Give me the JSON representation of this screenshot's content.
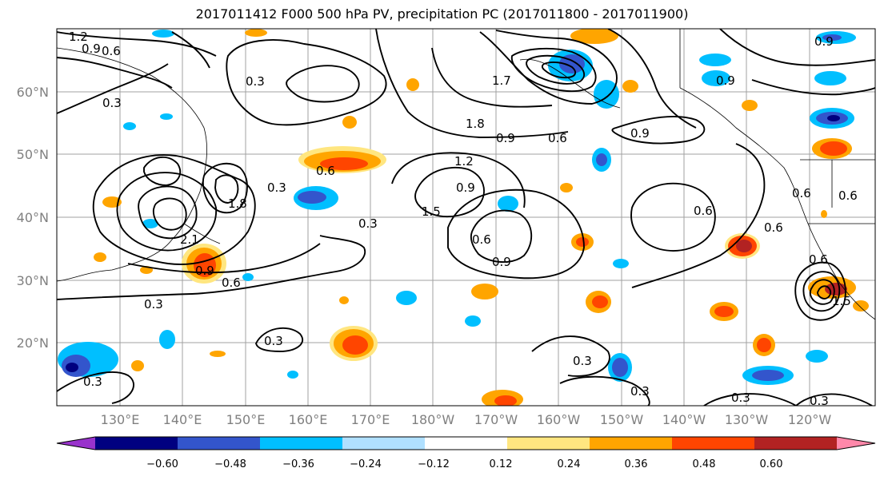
{
  "title": "2017011412 F000 500 hPa PV, precipitation PC (2017011800 - 2017011900)",
  "lat_ticks": [
    "60°N",
    "50°N",
    "40°N",
    "30°N",
    "20°N"
  ],
  "lon_ticks": [
    "130°E",
    "140°E",
    "150°E",
    "160°E",
    "170°E",
    "180°W",
    "170°W",
    "160°W",
    "150°W",
    "140°W",
    "130°W",
    "120°W"
  ],
  "contour_labels": [
    "1.2",
    "0.9",
    "0.6",
    "0.3",
    "0.3",
    "1.7",
    "1.8",
    "0.9",
    "0.6",
    "0.9",
    "0.9",
    "1.2",
    "0.6",
    "0.3",
    "1.5",
    "0.9",
    "0.3",
    "0.6",
    "0.9",
    "0.6",
    "0.6",
    "0.3",
    "0.9",
    "0.6",
    "0.3",
    "0.3",
    "0.3",
    "0.3",
    "0.3",
    "0.3",
    "0.6",
    "0.6",
    "1.8",
    "2.1",
    "0.9",
    "1.5",
    "0.6"
  ],
  "colorbar": {
    "ticks": [
      "−0.60",
      "−0.48",
      "−0.36",
      "−0.24",
      "−0.12",
      "0.12",
      "0.24",
      "0.36",
      "0.48",
      "0.60"
    ],
    "colors": [
      "#9933cc",
      "#000080",
      "#3355cc",
      "#00bfff",
      "#b0e0ff",
      "#ffffff",
      "#ffe680",
      "#ffa500",
      "#ff4500",
      "#b22222",
      "#ff88aa"
    ]
  }
}
